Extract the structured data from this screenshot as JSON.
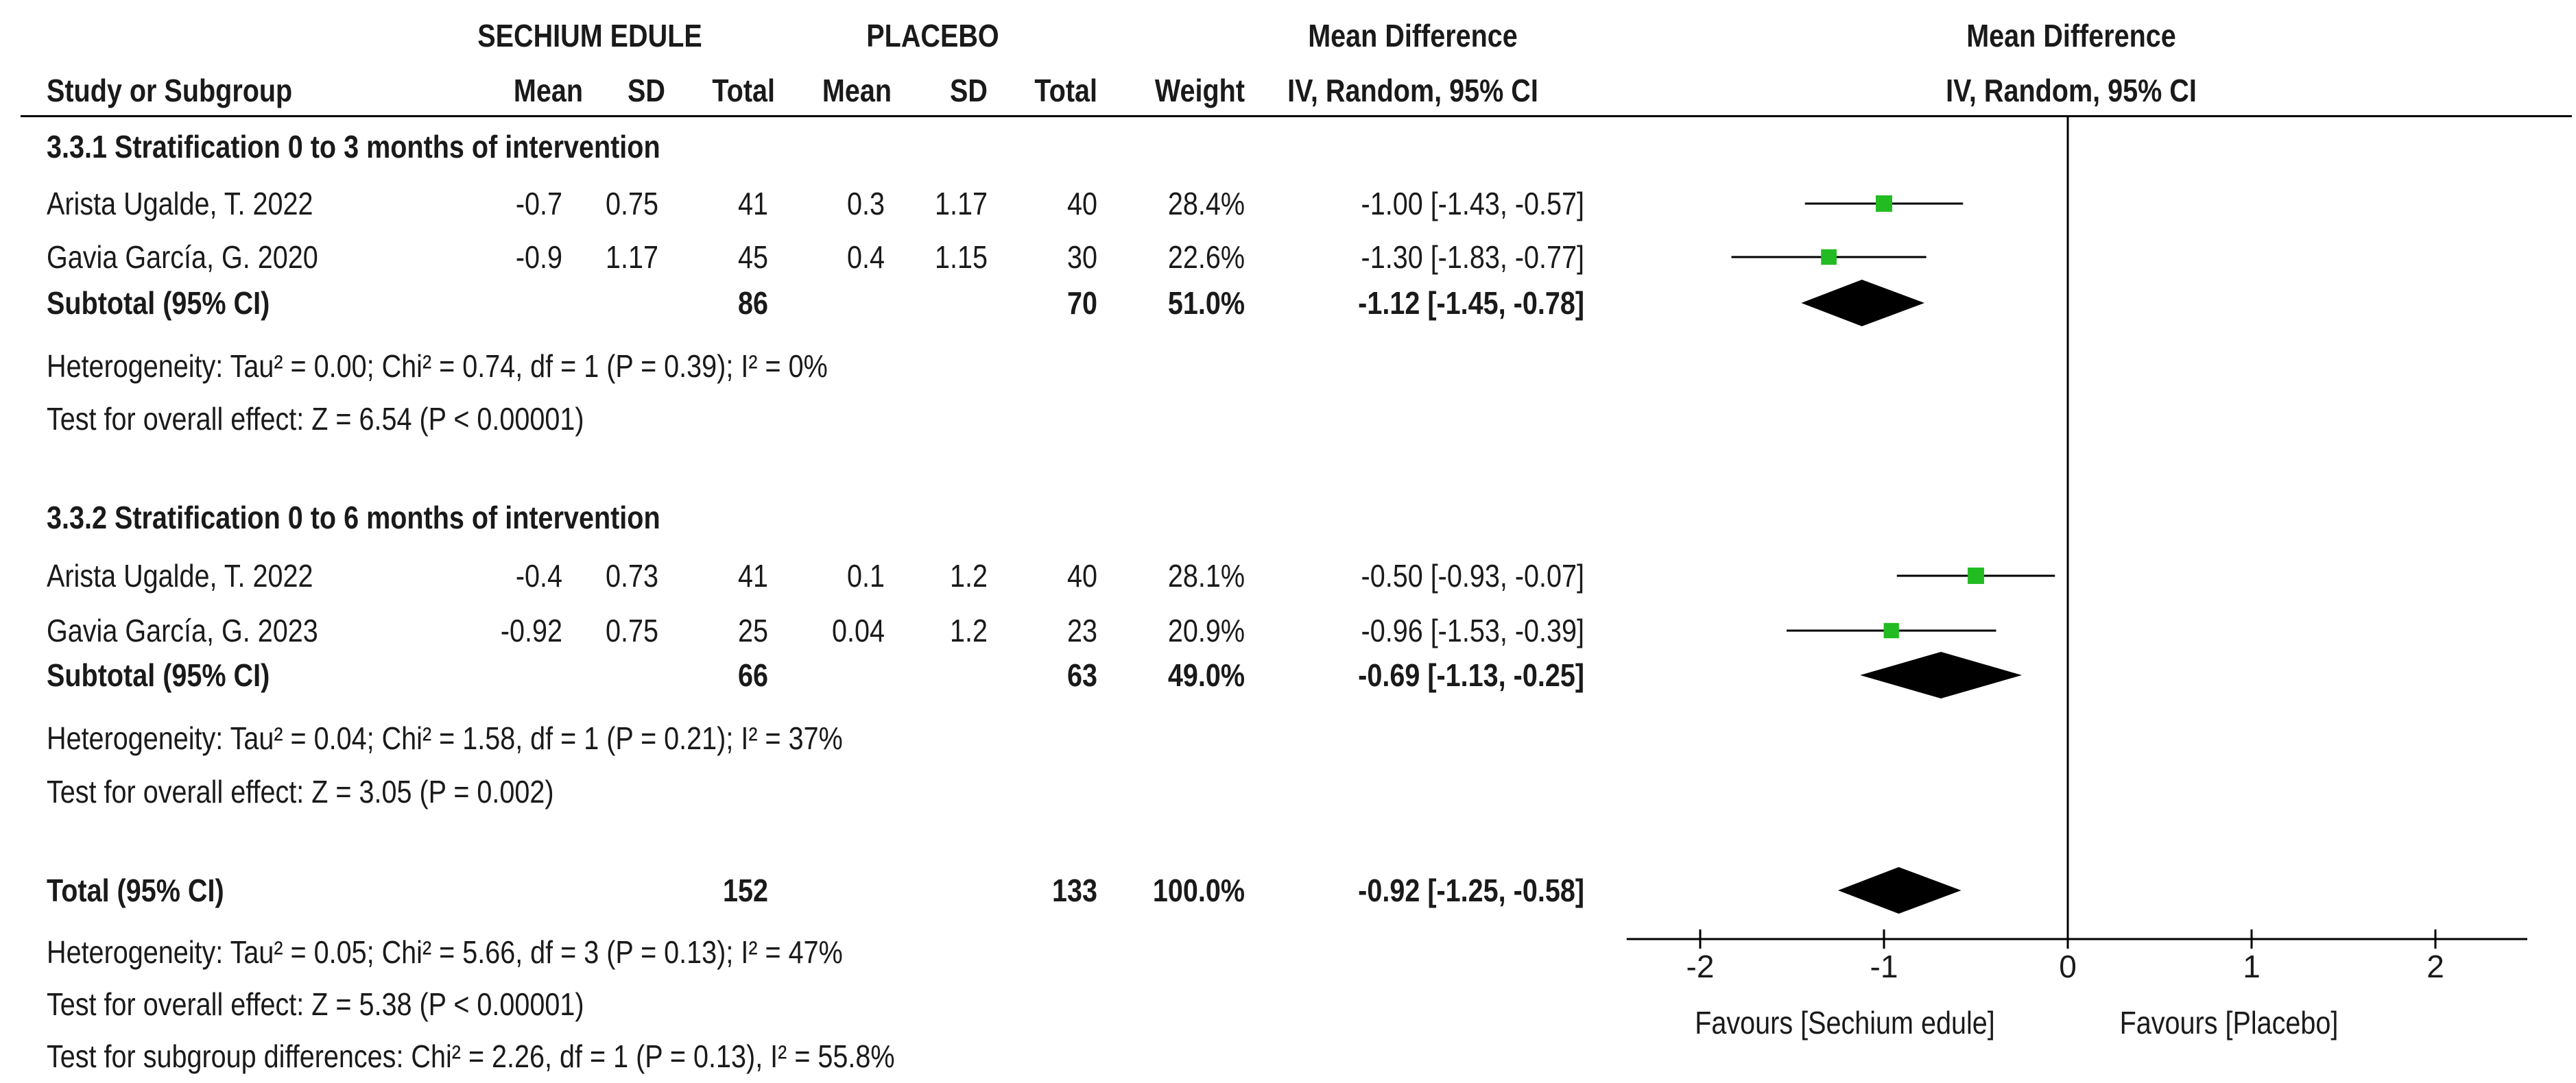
{
  "header": {
    "group_exp": "SECHIUM EDULE",
    "group_ctl": "PLACEBO",
    "md_header": "Mean Difference",
    "md_method": "IV, Random, 95% CI",
    "plot_header": "Mean Difference",
    "plot_method": "IV, Random, 95% CI",
    "col_study": "Study or Subgroup",
    "col_mean_e": "Mean",
    "col_sd_e": "SD",
    "col_total_e": "Total",
    "col_mean_c": "Mean",
    "col_sd_c": "SD",
    "col_total_c": "Total",
    "col_weight": "Weight"
  },
  "subgroups": [
    {
      "title": "3.3.1 Stratification 0 to 3 months of intervention",
      "studies": [
        {
          "name": "Arista Ugalde, T. 2022",
          "mean_e": "-0.7",
          "sd_e": "0.75",
          "total_e": "41",
          "mean_c": "0.3",
          "sd_c": "1.17",
          "total_c": "40",
          "weight": "28.4%",
          "ci_text": "-1.00 [-1.43, -0.57]"
        },
        {
          "name": "Gavia García, G. 2020",
          "mean_e": "-0.9",
          "sd_e": "1.17",
          "total_e": "45",
          "mean_c": "0.4",
          "sd_c": "1.15",
          "total_c": "30",
          "weight": "22.6%",
          "ci_text": "-1.30 [-1.83, -0.77]"
        }
      ],
      "subtotal": {
        "label": "Subtotal (95% CI)",
        "total_e": "86",
        "total_c": "70",
        "weight": "51.0%",
        "ci_text": "-1.12 [-1.45, -0.78]"
      },
      "heterogeneity": "Heterogeneity: Tau² = 0.00; Chi² = 0.74, df = 1 (P = 0.39); I² = 0%",
      "overall": "Test for overall effect: Z = 6.54 (P < 0.00001)"
    },
    {
      "title": "3.3.2 Stratification 0 to 6 months of intervention",
      "studies": [
        {
          "name": "Arista Ugalde, T. 2022",
          "mean_e": "-0.4",
          "sd_e": "0.73",
          "total_e": "41",
          "mean_c": "0.1",
          "sd_c": "1.2",
          "total_c": "40",
          "weight": "28.1%",
          "ci_text": "-0.50 [-0.93, -0.07]"
        },
        {
          "name": "Gavia García, G. 2023",
          "mean_e": "-0.92",
          "sd_e": "0.75",
          "total_e": "25",
          "mean_c": "0.04",
          "sd_c": "1.2",
          "total_c": "23",
          "weight": "20.9%",
          "ci_text": "-0.96 [-1.53, -0.39]"
        }
      ],
      "subtotal": {
        "label": "Subtotal (95% CI)",
        "total_e": "66",
        "total_c": "63",
        "weight": "49.0%",
        "ci_text": "-0.69 [-1.13, -0.25]"
      },
      "heterogeneity": "Heterogeneity: Tau² = 0.04; Chi² = 1.58, df = 1 (P = 0.21); I² = 37%",
      "overall": "Test for overall effect: Z = 3.05 (P = 0.002)"
    }
  ],
  "total": {
    "label": "Total (95% CI)",
    "total_e": "152",
    "total_c": "133",
    "weight": "100.0%",
    "ci_text": "-0.92 [-1.25, -0.58]",
    "heterogeneity": "Heterogeneity: Tau² = 0.05; Chi² = 5.66, df = 3 (P = 0.13); I² = 47%",
    "overall": "Test for overall effect: Z = 5.38 (P < 0.00001)",
    "subgroup_diff": "Test for subgroup differences: Chi² = 2.26, df = 1 (P = 0.13), I² = 55.8%"
  },
  "colors": {
    "marker": "#22bb22",
    "diamond": "#000000",
    "axis": "#000000"
  },
  "chart_data": {
    "type": "scatter",
    "title": "Mean Difference IV, Random, 95% CI",
    "xlabel_left": "Favours [Sechium edule]",
    "xlabel_right": "Favours [Placebo]",
    "xlim": [
      -2.4,
      2.5
    ],
    "ticks": [
      -2,
      -1,
      0,
      1,
      2
    ],
    "tick_labels": [
      "-2",
      "-1",
      "0",
      "1",
      "2"
    ],
    "studies": [
      {
        "name": "Arista Ugalde, T. 2022 (0-3 mo)",
        "md": -1.0,
        "lo": -1.43,
        "hi": -0.57,
        "weight": 28.4
      },
      {
        "name": "Gavia García, G. 2020",
        "md": -1.3,
        "lo": -1.83,
        "hi": -0.77,
        "weight": 22.6
      },
      {
        "name": "Arista Ugalde, T. 2022 (0-6 mo)",
        "md": -0.5,
        "lo": -0.93,
        "hi": -0.07,
        "weight": 28.1
      },
      {
        "name": "Gavia García, G. 2023",
        "md": -0.96,
        "lo": -1.53,
        "hi": -0.39,
        "weight": 20.9
      }
    ],
    "pooled": [
      {
        "name": "Subtotal 3.3.1",
        "md": -1.12,
        "lo": -1.45,
        "hi": -0.78
      },
      {
        "name": "Subtotal 3.3.2",
        "md": -0.69,
        "lo": -1.13,
        "hi": -0.25
      },
      {
        "name": "Total",
        "md": -0.92,
        "lo": -1.25,
        "hi": -0.58
      }
    ]
  }
}
